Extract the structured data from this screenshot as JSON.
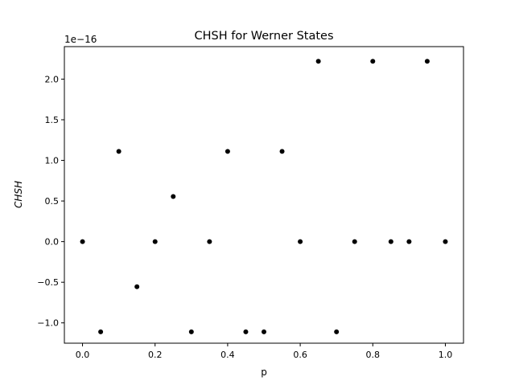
{
  "chart_data": {
    "type": "scatter",
    "title": "CHSH for Werner States",
    "xlabel": "p",
    "ylabel": "CHSH",
    "y_offset_label": "1e−16",
    "xlim": [
      -0.05,
      1.05
    ],
    "ylim": [
      -1.25,
      2.4
    ],
    "x_ticks": [
      0.0,
      0.2,
      0.4,
      0.6,
      0.8,
      1.0
    ],
    "x_tick_labels": [
      "0.0",
      "0.2",
      "0.4",
      "0.6",
      "0.8",
      "1.0"
    ],
    "y_ticks": [
      -1.0,
      -0.5,
      0.0,
      0.5,
      1.0,
      1.5,
      2.0
    ],
    "y_tick_labels": [
      "−1.0",
      "−0.5",
      "0.0",
      "0.5",
      "1.0",
      "1.5",
      "2.0"
    ],
    "grid": false,
    "marker_color": "#000000",
    "series": [
      {
        "x": [
          0.0,
          0.05,
          0.1,
          0.15,
          0.2,
          0.25,
          0.3,
          0.35,
          0.4,
          0.45,
          0.5,
          0.55,
          0.6,
          0.65,
          0.7,
          0.75,
          0.8,
          0.85,
          0.9,
          0.95,
          1.0
        ],
        "y": [
          0.0,
          -1.11,
          1.11,
          -0.555,
          0.0,
          0.555,
          -1.11,
          0.0,
          1.11,
          -1.11,
          -1.11,
          1.11,
          0.0,
          2.22,
          -1.11,
          0.0,
          2.22,
          0.0,
          0.0,
          2.22,
          0.0
        ]
      }
    ]
  }
}
